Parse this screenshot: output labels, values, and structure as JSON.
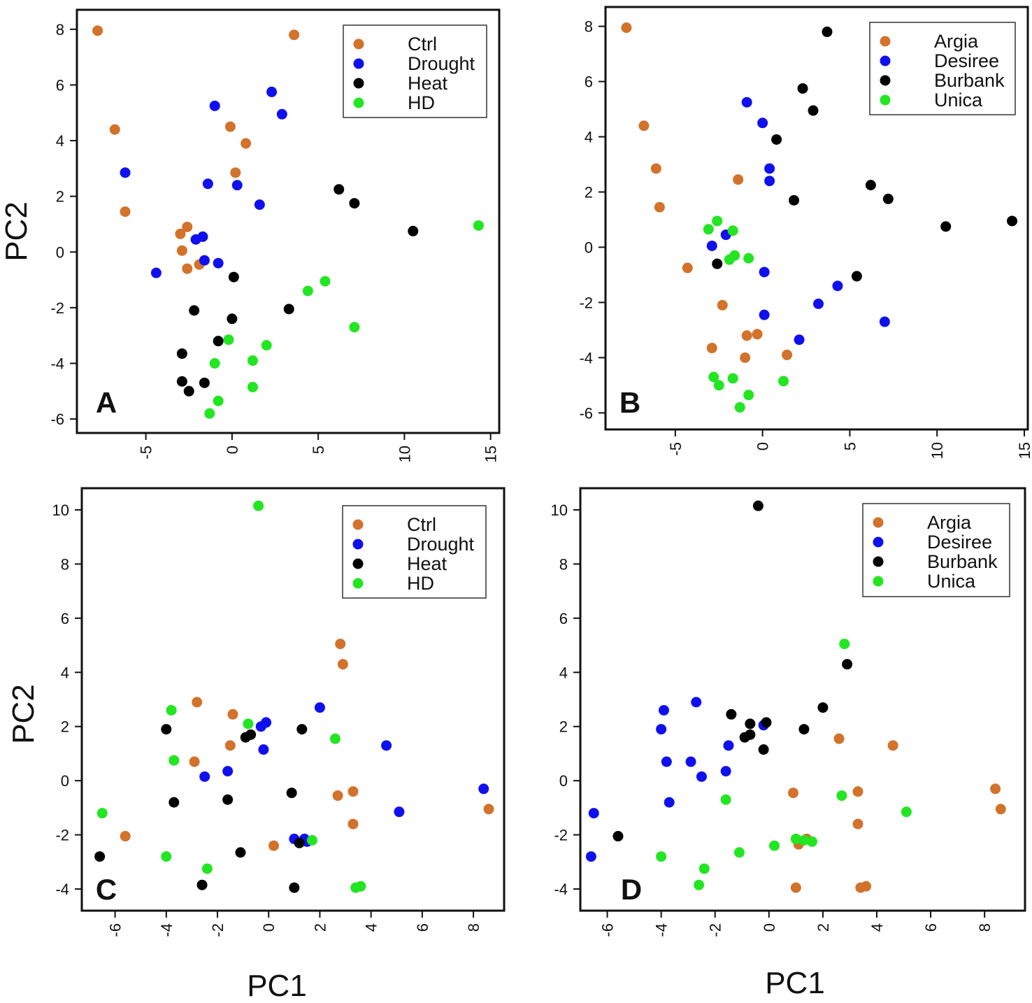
{
  "figure": {
    "ylabel_top": "PC2",
    "ylabel_bottom": "PC2",
    "xlabel_left": "PC1",
    "xlabel_right": "PC1"
  },
  "colors": {
    "orange": "#d2722b",
    "blue": "#1010ee",
    "black": "#000000",
    "green": "#22e622"
  },
  "chart_data": [
    {
      "type": "scatter",
      "panel": "A",
      "xlim": [
        -9,
        15.5
      ],
      "ylim": [
        -6.5,
        8.7
      ],
      "xticks": [
        "-5",
        "0",
        "5",
        "10",
        "15"
      ],
      "xtick_values": [
        -5,
        0,
        5,
        10,
        15
      ],
      "yticks": [
        "-6",
        "-4",
        "-2",
        "0",
        "2",
        "4",
        "6",
        "8"
      ],
      "ytick_values": [
        -6,
        -4,
        -2,
        0,
        2,
        4,
        6,
        8
      ],
      "legend": [
        "Ctrl",
        "Drought",
        "Heat",
        "HD"
      ],
      "series": [
        {
          "name": "Ctrl",
          "color": "orange",
          "points": [
            [
              -7.8,
              7.95
            ],
            [
              3.6,
              7.8
            ],
            [
              -6.8,
              4.4
            ],
            [
              -0.1,
              4.5
            ],
            [
              0.8,
              3.9
            ],
            [
              0.2,
              2.85
            ],
            [
              -6.2,
              1.45
            ],
            [
              -2.6,
              0.9
            ],
            [
              -3.0,
              0.65
            ],
            [
              -2.9,
              0.05
            ],
            [
              -2.6,
              -0.6
            ],
            [
              -1.9,
              -0.45
            ]
          ]
        },
        {
          "name": "Drought",
          "color": "blue",
          "points": [
            [
              2.3,
              5.75
            ],
            [
              -1.0,
              5.25
            ],
            [
              2.9,
              4.95
            ],
            [
              -6.2,
              2.85
            ],
            [
              -1.4,
              2.45
            ],
            [
              0.3,
              2.4
            ],
            [
              1.6,
              1.7
            ],
            [
              -2.1,
              0.45
            ],
            [
              -1.7,
              0.55
            ],
            [
              -1.6,
              -0.3
            ],
            [
              -0.8,
              -0.4
            ],
            [
              -4.4,
              -0.75
            ]
          ]
        },
        {
          "name": "Heat",
          "color": "black",
          "points": [
            [
              6.2,
              2.25
            ],
            [
              7.1,
              1.75
            ],
            [
              10.5,
              0.75
            ],
            [
              0.1,
              -0.9
            ],
            [
              -2.2,
              -2.1
            ],
            [
              3.3,
              -2.05
            ],
            [
              0.0,
              -2.4
            ],
            [
              -0.8,
              -3.2
            ],
            [
              -2.9,
              -3.65
            ],
            [
              -2.9,
              -4.65
            ],
            [
              -1.6,
              -4.7
            ],
            [
              -2.5,
              -5.0
            ]
          ]
        },
        {
          "name": "HD",
          "color": "green",
          "points": [
            [
              14.3,
              0.95
            ],
            [
              5.4,
              -1.05
            ],
            [
              4.4,
              -1.4
            ],
            [
              7.1,
              -2.7
            ],
            [
              -0.2,
              -3.15
            ],
            [
              2.0,
              -3.35
            ],
            [
              1.2,
              -3.9
            ],
            [
              -1.0,
              -4.0
            ],
            [
              1.2,
              -4.85
            ],
            [
              -0.8,
              -5.35
            ],
            [
              -1.3,
              -5.8
            ]
          ]
        }
      ]
    },
    {
      "type": "scatter",
      "panel": "B",
      "xlim": [
        -9,
        15.2
      ],
      "ylim": [
        -6.6,
        8.7
      ],
      "xticks": [
        "-5",
        "0",
        "5",
        "10",
        "15"
      ],
      "xtick_values": [
        -5,
        0,
        5,
        10,
        15
      ],
      "yticks": [
        "-6",
        "-4",
        "-2",
        "0",
        "2",
        "4",
        "6",
        "8"
      ],
      "ytick_values": [
        -6,
        -4,
        -2,
        0,
        2,
        4,
        6,
        8
      ],
      "legend": [
        "Argia",
        "Desiree",
        "Burbank",
        "Unica"
      ],
      "series": [
        {
          "name": "Argia",
          "color": "orange",
          "points": [
            [
              -7.8,
              7.95
            ],
            [
              -6.8,
              4.4
            ],
            [
              -6.1,
              2.85
            ],
            [
              -1.4,
              2.45
            ],
            [
              -5.9,
              1.45
            ],
            [
              -4.3,
              -0.75
            ],
            [
              -2.3,
              -2.1
            ],
            [
              -0.3,
              -3.15
            ],
            [
              -0.9,
              -3.2
            ],
            [
              -2.9,
              -3.65
            ],
            [
              -1.0,
              -4.0
            ],
            [
              1.4,
              -3.9
            ]
          ]
        },
        {
          "name": "Desiree",
          "color": "blue",
          "points": [
            [
              -0.9,
              5.25
            ],
            [
              0.0,
              4.5
            ],
            [
              0.4,
              2.85
            ],
            [
              0.4,
              2.4
            ],
            [
              -2.1,
              0.45
            ],
            [
              -2.9,
              0.05
            ],
            [
              0.1,
              -0.9
            ],
            [
              0.1,
              -2.45
            ],
            [
              3.2,
              -2.05
            ],
            [
              4.3,
              -1.4
            ],
            [
              7.0,
              -2.7
            ],
            [
              2.1,
              -3.35
            ]
          ]
        },
        {
          "name": "Burbank",
          "color": "black",
          "points": [
            [
              3.7,
              7.8
            ],
            [
              2.3,
              5.75
            ],
            [
              2.9,
              4.95
            ],
            [
              0.8,
              3.9
            ],
            [
              1.8,
              1.7
            ],
            [
              6.2,
              2.25
            ],
            [
              7.2,
              1.75
            ],
            [
              10.5,
              0.75
            ],
            [
              14.3,
              0.95
            ],
            [
              -2.6,
              -0.6
            ],
            [
              5.4,
              -1.05
            ]
          ]
        },
        {
          "name": "Unica",
          "color": "green",
          "points": [
            [
              -2.6,
              0.95
            ],
            [
              -3.1,
              0.65
            ],
            [
              -1.7,
              0.6
            ],
            [
              -1.9,
              -0.45
            ],
            [
              -1.6,
              -0.3
            ],
            [
              -0.8,
              -0.4
            ],
            [
              -2.8,
              -4.7
            ],
            [
              -1.7,
              -4.75
            ],
            [
              -2.5,
              -5.0
            ],
            [
              1.2,
              -4.85
            ],
            [
              -0.8,
              -5.35
            ],
            [
              -1.3,
              -5.8
            ]
          ]
        }
      ]
    },
    {
      "type": "scatter",
      "panel": "C",
      "xlim": [
        -7.3,
        9.2
      ],
      "ylim": [
        -4.8,
        10.8
      ],
      "xticks": [
        "-6",
        "-4",
        "-2",
        "0",
        "2",
        "4",
        "6",
        "8"
      ],
      "xtick_values": [
        -6,
        -4,
        -2,
        0,
        2,
        4,
        6,
        8
      ],
      "yticks": [
        "-4",
        "-2",
        "0",
        "2",
        "4",
        "6",
        "8",
        "10"
      ],
      "ytick_values": [
        -4,
        -2,
        0,
        2,
        4,
        6,
        8,
        10
      ],
      "legend": [
        "Ctrl",
        "Drought",
        "Heat",
        "HD"
      ],
      "series": [
        {
          "name": "Ctrl",
          "color": "orange",
          "points": [
            [
              2.8,
              5.05
            ],
            [
              2.9,
              4.3
            ],
            [
              -2.8,
              2.9
            ],
            [
              -1.4,
              2.45
            ],
            [
              -1.5,
              1.3
            ],
            [
              -2.9,
              0.7
            ],
            [
              2.7,
              -0.55
            ],
            [
              3.3,
              -0.4
            ],
            [
              3.3,
              -1.6
            ],
            [
              8.6,
              -1.05
            ],
            [
              -5.6,
              -2.05
            ],
            [
              0.2,
              -2.4
            ]
          ]
        },
        {
          "name": "Drought",
          "color": "blue",
          "points": [
            [
              2.0,
              2.7
            ],
            [
              -0.1,
              2.15
            ],
            [
              -0.3,
              2.0
            ],
            [
              -0.2,
              1.15
            ],
            [
              4.6,
              1.3
            ],
            [
              -1.6,
              0.35
            ],
            [
              -2.5,
              0.15
            ],
            [
              8.4,
              -0.3
            ],
            [
              5.1,
              -1.15
            ],
            [
              1.0,
              -2.15
            ],
            [
              1.4,
              -2.15
            ],
            [
              1.5,
              -2.25
            ]
          ]
        },
        {
          "name": "Heat",
          "color": "black",
          "points": [
            [
              -4.0,
              1.9
            ],
            [
              -0.7,
              1.7
            ],
            [
              -0.9,
              1.6
            ],
            [
              1.3,
              1.9
            ],
            [
              -3.7,
              -0.8
            ],
            [
              -1.6,
              -0.7
            ],
            [
              0.9,
              -0.45
            ],
            [
              -1.1,
              -2.65
            ],
            [
              1.2,
              -2.3
            ],
            [
              -6.6,
              -2.8
            ],
            [
              -2.6,
              -3.85
            ],
            [
              1.0,
              -3.95
            ]
          ]
        },
        {
          "name": "HD",
          "color": "green",
          "points": [
            [
              -0.4,
              10.15
            ],
            [
              -3.8,
              2.6
            ],
            [
              -0.8,
              2.1
            ],
            [
              2.6,
              1.55
            ],
            [
              -3.7,
              0.75
            ],
            [
              -6.5,
              -1.2
            ],
            [
              1.7,
              -2.2
            ],
            [
              -4.0,
              -2.8
            ],
            [
              -2.4,
              -3.25
            ],
            [
              3.4,
              -3.95
            ],
            [
              3.6,
              -3.9
            ]
          ]
        }
      ]
    },
    {
      "type": "scatter",
      "panel": "D",
      "xlim": [
        -7.0,
        9.5
      ],
      "ylim": [
        -4.8,
        10.8
      ],
      "xticks": [
        "-6",
        "-4",
        "-2",
        "0",
        "2",
        "4",
        "6",
        "8"
      ],
      "xtick_values": [
        -6,
        -4,
        -2,
        0,
        2,
        4,
        6,
        8
      ],
      "yticks": [
        "-4",
        "-2",
        "0",
        "2",
        "4",
        "6",
        "8",
        "10"
      ],
      "ytick_values": [
        -4,
        -2,
        0,
        2,
        4,
        6,
        8,
        10
      ],
      "legend": [
        "Argia",
        "Desiree",
        "Burbank",
        "Unica"
      ],
      "series": [
        {
          "name": "Argia",
          "color": "orange",
          "points": [
            [
              2.6,
              1.55
            ],
            [
              4.6,
              1.3
            ],
            [
              0.9,
              -0.45
            ],
            [
              3.3,
              -0.4
            ],
            [
              3.3,
              -1.6
            ],
            [
              8.4,
              -0.3
            ],
            [
              8.6,
              -1.05
            ],
            [
              1.4,
              -2.15
            ],
            [
              1.1,
              -2.35
            ],
            [
              1.0,
              -3.95
            ],
            [
              3.4,
              -3.95
            ],
            [
              3.6,
              -3.9
            ]
          ]
        },
        {
          "name": "Desiree",
          "color": "blue",
          "points": [
            [
              -2.7,
              2.9
            ],
            [
              -3.9,
              2.6
            ],
            [
              -4.0,
              1.9
            ],
            [
              -0.2,
              2.05
            ],
            [
              -1.5,
              1.3
            ],
            [
              -3.8,
              0.7
            ],
            [
              -2.9,
              0.7
            ],
            [
              -2.5,
              0.15
            ],
            [
              -1.6,
              0.35
            ],
            [
              -3.7,
              -0.8
            ],
            [
              -6.5,
              -1.2
            ],
            [
              -6.6,
              -2.8
            ]
          ]
        },
        {
          "name": "Burbank",
          "color": "black",
          "points": [
            [
              -0.4,
              10.15
            ],
            [
              2.9,
              4.3
            ],
            [
              2.0,
              2.7
            ],
            [
              -1.4,
              2.45
            ],
            [
              -0.7,
              2.1
            ],
            [
              -0.1,
              2.15
            ],
            [
              1.3,
              1.9
            ],
            [
              -0.9,
              1.6
            ],
            [
              -0.7,
              1.7
            ],
            [
              -0.2,
              1.15
            ],
            [
              -5.6,
              -2.05
            ]
          ]
        },
        {
          "name": "Unica",
          "color": "green",
          "points": [
            [
              2.8,
              5.05
            ],
            [
              2.7,
              -0.55
            ],
            [
              5.1,
              -1.15
            ],
            [
              -1.6,
              -0.7
            ],
            [
              1.0,
              -2.15
            ],
            [
              1.6,
              -2.25
            ],
            [
              1.3,
              -2.2
            ],
            [
              0.2,
              -2.4
            ],
            [
              -1.1,
              -2.65
            ],
            [
              -4.0,
              -2.8
            ],
            [
              -2.4,
              -3.25
            ],
            [
              -2.6,
              -3.85
            ]
          ]
        }
      ]
    }
  ]
}
